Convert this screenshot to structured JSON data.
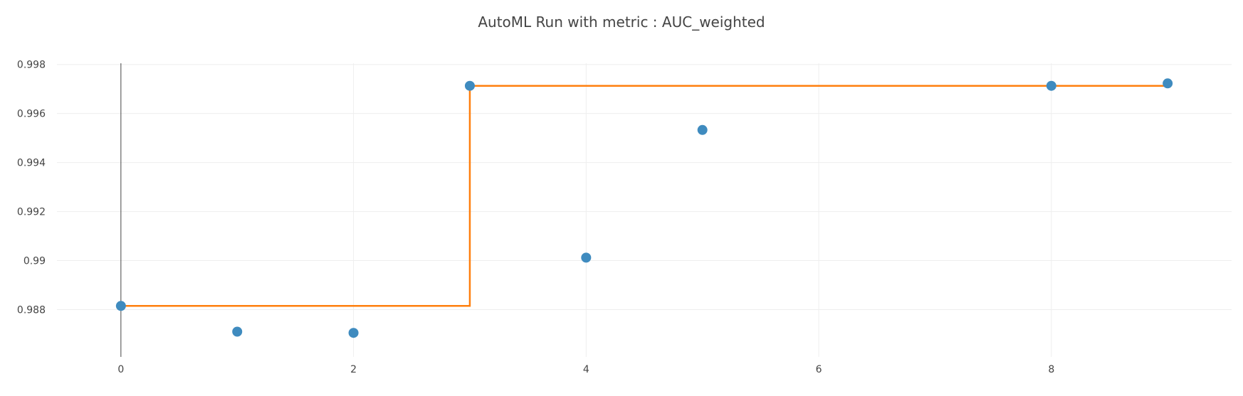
{
  "chart_data": {
    "type": "scatter",
    "title": "AutoML Run with metric : AUC_weighted",
    "xlabel": "",
    "ylabel": "",
    "xlim": [
      -0.55,
      9.55
    ],
    "ylim": [
      0.98607,
      0.99805
    ],
    "x_ticks": [
      {
        "value": 0,
        "label": "0"
      },
      {
        "value": 2,
        "label": "2"
      },
      {
        "value": 4,
        "label": "4"
      },
      {
        "value": 6,
        "label": "6"
      },
      {
        "value": 8,
        "label": "8"
      }
    ],
    "y_ticks": [
      {
        "value": 0.988,
        "label": "0.988"
      },
      {
        "value": 0.99,
        "label": "0.99"
      },
      {
        "value": 0.992,
        "label": "0.992"
      },
      {
        "value": 0.994,
        "label": "0.994"
      },
      {
        "value": 0.996,
        "label": "0.996"
      },
      {
        "value": 0.998,
        "label": "0.998"
      }
    ],
    "grid": true,
    "legend": "none",
    "series": [
      {
        "mode": "markers",
        "color": "#3f8bbf",
        "x": [
          0,
          1,
          2,
          3,
          4,
          5,
          8,
          9
        ],
        "y": [
          0.98815,
          0.9871,
          0.98705,
          0.99713,
          0.99012,
          0.99533,
          0.99713,
          0.99723
        ]
      },
      {
        "mode": "step-line",
        "color": "#ff7f0e",
        "x": [
          0,
          1,
          2,
          3,
          4,
          5,
          8,
          9
        ],
        "y": [
          0.98815,
          0.98815,
          0.98815,
          0.99713,
          0.99713,
          0.99713,
          0.99713,
          0.99713
        ]
      }
    ]
  }
}
